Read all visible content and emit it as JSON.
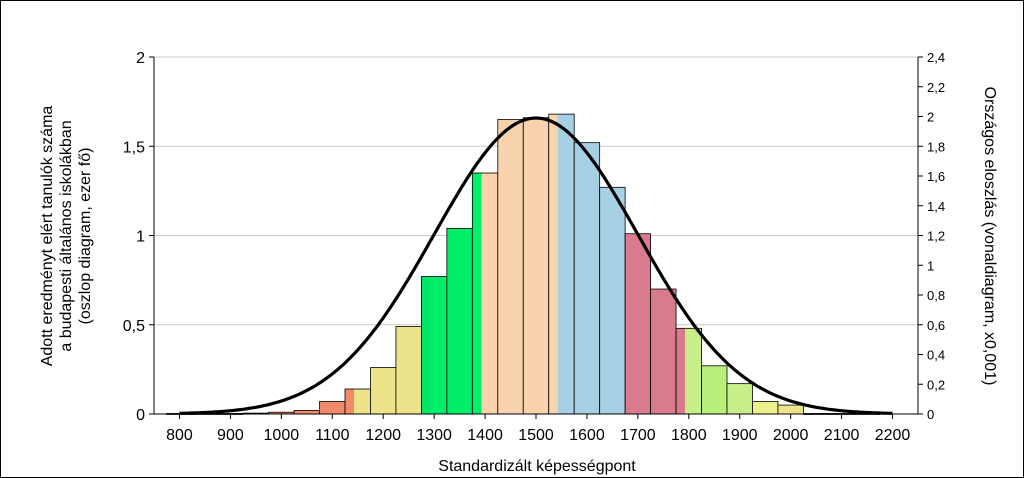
{
  "chart_data": {
    "type": "bar",
    "xlabel": "Standardizált képességpont",
    "ylabel_lines": [
      "Adott eredményt elért tanulók száma",
      "a budapesti általános iskolákban",
      "(oszlop diagram, ezer fő)"
    ],
    "y2label": "Országos eloszlás (vonaldiagram, x0,001)",
    "xlim": [
      750,
      2250
    ],
    "ylim": [
      0,
      2
    ],
    "y2lim": [
      0,
      2.4
    ],
    "x_ticks": [
      800,
      900,
      1000,
      1100,
      1200,
      1300,
      1400,
      1500,
      1600,
      1700,
      1800,
      1900,
      2000,
      2100,
      2200
    ],
    "y_ticks": [
      "0",
      "0,5",
      "1",
      "1,5",
      "2"
    ],
    "y_tick_values": [
      0,
      0.5,
      1,
      1.5,
      2
    ],
    "y2_ticks": [
      "0",
      "0,2",
      "0,4",
      "0,6",
      "0,8",
      "1",
      "1,2",
      "1,4",
      "1,6",
      "1,8",
      "2",
      "2,2",
      "2,4"
    ],
    "y2_tick_values": [
      0,
      0.2,
      0.4,
      0.6,
      0.8,
      1.0,
      1.2,
      1.4,
      1.6,
      1.8,
      2.0,
      2.2,
      2.4
    ],
    "grid": true,
    "bars": [
      {
        "x": 800,
        "value": 0.003,
        "color": "#f08a6a"
      },
      {
        "x": 850,
        "value": 0.003,
        "color": "#f08a6a"
      },
      {
        "x": 900,
        "value": 0.003,
        "color": "#f08a6a"
      },
      {
        "x": 950,
        "value": 0.005,
        "color": "#f08a6a"
      },
      {
        "x": 1000,
        "value": 0.01,
        "color": "#f08a6a"
      },
      {
        "x": 1050,
        "value": 0.02,
        "color": "#f08a6a"
      },
      {
        "x": 1100,
        "value": 0.07,
        "color": "#f08a6a"
      },
      {
        "x": 1150,
        "value": 0.14,
        "color": "#f08a6a",
        "color2": "#ede38a"
      },
      {
        "x": 1200,
        "value": 0.26,
        "color": "#ede38a"
      },
      {
        "x": 1250,
        "value": 0.49,
        "color": "#ede38a"
      },
      {
        "x": 1300,
        "value": 0.77,
        "color": "#00e667",
        "color2": "#00ee6a"
      },
      {
        "x": 1350,
        "value": 1.04,
        "color": "#00ee6a"
      },
      {
        "x": 1400,
        "value": 1.35,
        "color": "#00ee6a",
        "color2": "#f9d3ad"
      },
      {
        "x": 1450,
        "value": 1.65,
        "color": "#f9d3ad"
      },
      {
        "x": 1500,
        "value": 1.66,
        "color": "#f9d3ad"
      },
      {
        "x": 1550,
        "value": 1.68,
        "color": "#f9d3ad",
        "color2": "#a7d0e4"
      },
      {
        "x": 1600,
        "value": 1.52,
        "color": "#a7d0e4"
      },
      {
        "x": 1650,
        "value": 1.27,
        "color": "#a7d0e4"
      },
      {
        "x": 1700,
        "value": 1.01,
        "color": "#d97a8d"
      },
      {
        "x": 1750,
        "value": 0.7,
        "color": "#d97a8d"
      },
      {
        "x": 1800,
        "value": 0.48,
        "color": "#d97a8d",
        "color2": "#c8ef8a"
      },
      {
        "x": 1850,
        "value": 0.27,
        "color": "#b8ef78"
      },
      {
        "x": 1900,
        "value": 0.17,
        "color": "#c8ef8a"
      },
      {
        "x": 1950,
        "value": 0.07,
        "color": "#edf08a"
      },
      {
        "x": 2000,
        "value": 0.05,
        "color": "#ede38a"
      },
      {
        "x": 2050,
        "value": 0.003,
        "color": "#ffffff"
      },
      {
        "x": 2100,
        "value": 0.003,
        "color": "#ffffff"
      },
      {
        "x": 2150,
        "value": 0.003,
        "color": "#ffffff"
      }
    ],
    "curve": {
      "type": "normal",
      "mean": 1500,
      "sd": 200,
      "peak_y2": 1.99,
      "color": "#000000"
    }
  }
}
